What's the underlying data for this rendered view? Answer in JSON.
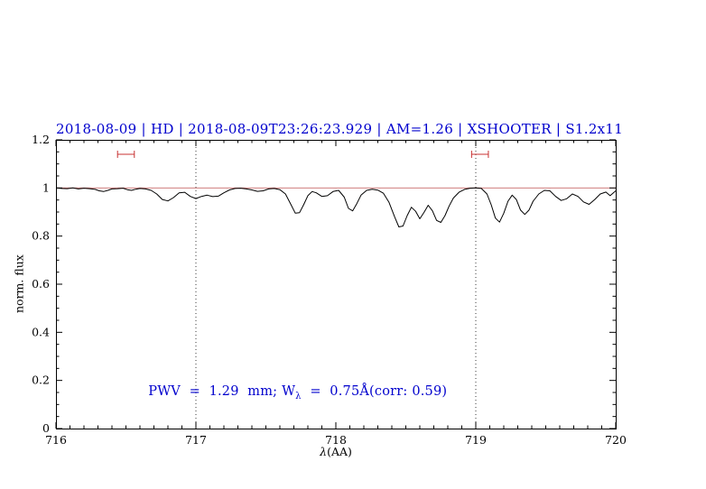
{
  "chart_data": {
    "type": "line",
    "title": "2018-08-09 | HD | 2018-08-09T23:26:23.929 | AM=1.26 | XSHOOTER | S1.2x11",
    "ylabel": "norm. flux",
    "xlabel_symbol": "λ",
    "xlabel_rest": "(AA)",
    "annotation": {
      "prefix": "PWV  =  1.29  mm; W",
      "sub": "λ",
      "suffix": "  =  0.75Å(corr: 0.59)"
    },
    "xlim": [
      716,
      720
    ],
    "ylim": [
      0,
      1.2
    ],
    "xticks": [
      716,
      717,
      718,
      719,
      720
    ],
    "xtick_labels": [
      "716",
      "717",
      "718",
      "719",
      "720"
    ],
    "yticks": [
      0,
      0.2,
      0.4,
      0.6,
      0.8,
      1,
      1.2
    ],
    "ytick_labels": [
      "0",
      "0.2",
      "0.4",
      "0.6",
      "0.8",
      "1",
      "1.2"
    ],
    "minor_x_step": 0.1,
    "minor_y_step": 0.05,
    "vlines": [
      717,
      719
    ],
    "continuum_level": 1.0,
    "range_markers": [
      {
        "x1": 716.44,
        "x2": 716.56,
        "y": 1.14
      },
      {
        "x1": 718.97,
        "x2": 719.09,
        "y": 1.14
      }
    ],
    "colors": {
      "text_accent": "#0000cd",
      "spectrum": "#000000",
      "continuum": "#c96a6a",
      "marker": "#c83232",
      "dotted": "#3a3a3a",
      "axis": "#000000"
    },
    "series": [
      {
        "name": "spectrum",
        "points": [
          [
            716.0,
            1.0
          ],
          [
            716.04,
            0.998
          ],
          [
            716.08,
            0.997
          ],
          [
            716.12,
            1.0
          ],
          [
            716.16,
            0.996
          ],
          [
            716.2,
            0.999
          ],
          [
            716.24,
            0.997
          ],
          [
            716.28,
            0.994
          ],
          [
            716.31,
            0.988
          ],
          [
            716.34,
            0.985
          ],
          [
            716.37,
            0.99
          ],
          [
            716.4,
            0.996
          ],
          [
            716.44,
            0.997
          ],
          [
            716.48,
            0.999
          ],
          [
            716.51,
            0.993
          ],
          [
            716.54,
            0.99
          ],
          [
            716.57,
            0.995
          ],
          [
            716.6,
            0.998
          ],
          [
            716.64,
            0.996
          ],
          [
            716.68,
            0.99
          ],
          [
            716.72,
            0.975
          ],
          [
            716.76,
            0.952
          ],
          [
            716.8,
            0.946
          ],
          [
            716.84,
            0.96
          ],
          [
            716.88,
            0.98
          ],
          [
            716.92,
            0.982
          ],
          [
            716.96,
            0.965
          ],
          [
            717.0,
            0.956
          ],
          [
            717.04,
            0.965
          ],
          [
            717.08,
            0.97
          ],
          [
            717.12,
            0.964
          ],
          [
            717.16,
            0.966
          ],
          [
            717.2,
            0.98
          ],
          [
            717.24,
            0.992
          ],
          [
            717.28,
            0.998
          ],
          [
            717.32,
            0.999
          ],
          [
            717.36,
            0.996
          ],
          [
            717.4,
            0.992
          ],
          [
            717.44,
            0.986
          ],
          [
            717.48,
            0.988
          ],
          [
            717.52,
            0.996
          ],
          [
            717.56,
            0.998
          ],
          [
            717.6,
            0.993
          ],
          [
            717.64,
            0.975
          ],
          [
            717.68,
            0.93
          ],
          [
            717.71,
            0.895
          ],
          [
            717.74,
            0.897
          ],
          [
            717.77,
            0.93
          ],
          [
            717.8,
            0.968
          ],
          [
            717.83,
            0.985
          ],
          [
            717.86,
            0.98
          ],
          [
            717.9,
            0.965
          ],
          [
            717.94,
            0.968
          ],
          [
            717.98,
            0.985
          ],
          [
            718.02,
            0.99
          ],
          [
            718.06,
            0.962
          ],
          [
            718.09,
            0.915
          ],
          [
            718.12,
            0.905
          ],
          [
            718.15,
            0.935
          ],
          [
            718.18,
            0.97
          ],
          [
            718.22,
            0.99
          ],
          [
            718.26,
            0.995
          ],
          [
            718.3,
            0.991
          ],
          [
            718.34,
            0.978
          ],
          [
            718.38,
            0.94
          ],
          [
            718.42,
            0.88
          ],
          [
            718.45,
            0.838
          ],
          [
            718.48,
            0.842
          ],
          [
            718.51,
            0.885
          ],
          [
            718.54,
            0.92
          ],
          [
            718.57,
            0.903
          ],
          [
            718.6,
            0.872
          ],
          [
            718.63,
            0.898
          ],
          [
            718.66,
            0.928
          ],
          [
            718.69,
            0.905
          ],
          [
            718.72,
            0.865
          ],
          [
            718.75,
            0.857
          ],
          [
            718.78,
            0.885
          ],
          [
            718.81,
            0.925
          ],
          [
            718.84,
            0.958
          ],
          [
            718.88,
            0.982
          ],
          [
            718.92,
            0.994
          ],
          [
            718.96,
            0.999
          ],
          [
            719.0,
            1.0
          ],
          [
            719.04,
            0.998
          ],
          [
            719.08,
            0.975
          ],
          [
            719.11,
            0.93
          ],
          [
            719.14,
            0.875
          ],
          [
            719.17,
            0.858
          ],
          [
            719.2,
            0.895
          ],
          [
            719.23,
            0.945
          ],
          [
            719.26,
            0.97
          ],
          [
            719.29,
            0.952
          ],
          [
            719.32,
            0.908
          ],
          [
            719.35,
            0.89
          ],
          [
            719.38,
            0.908
          ],
          [
            719.41,
            0.945
          ],
          [
            719.45,
            0.975
          ],
          [
            719.49,
            0.99
          ],
          [
            719.53,
            0.988
          ],
          [
            719.57,
            0.965
          ],
          [
            719.61,
            0.948
          ],
          [
            719.65,
            0.955
          ],
          [
            719.69,
            0.975
          ],
          [
            719.73,
            0.965
          ],
          [
            719.77,
            0.942
          ],
          [
            719.81,
            0.932
          ],
          [
            719.85,
            0.952
          ],
          [
            719.89,
            0.975
          ],
          [
            719.93,
            0.983
          ],
          [
            719.96,
            0.968
          ],
          [
            720.0,
            0.988
          ]
        ]
      }
    ]
  }
}
